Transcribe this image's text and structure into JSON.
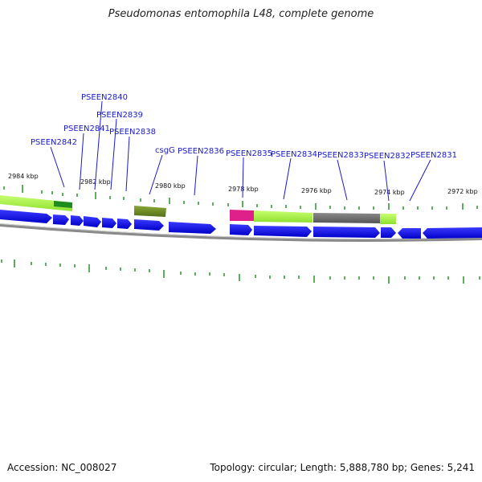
{
  "title": "Pseudomonas entomophila L48, complete genome",
  "footer": {
    "accession": "Accession: NC_008027",
    "summary": "Topology: circular; Length: 5,888,780 bp; Genes: 5,241"
  },
  "colors": {
    "cds": "#1010e6",
    "pseudo_green": "#a4f040",
    "dark_green": "#1f8c1f",
    "olive": "#6b8a1e",
    "magenta": "#e0208a",
    "gray": "#666666",
    "label": "#1a1acc",
    "tick": "#1a8c1a",
    "backbone": "#8a8a8a"
  },
  "gene_labels": [
    "PSEEN2840",
    "PSEEN2839",
    "PSEEN2841",
    "PSEEN2838",
    "PSEEN2842",
    "csgG",
    "PSEEN2836",
    "PSEEN2835",
    "PSEEN2834",
    "PSEEN2833",
    "PSEEN2832",
    "PSEEN2831"
  ],
  "kbp_labels": [
    "2984 kbp",
    "2982 kbp",
    "2980 kbp",
    "2978 kbp",
    "2976 kbp",
    "2974 kbp",
    "2972 kbp"
  ]
}
